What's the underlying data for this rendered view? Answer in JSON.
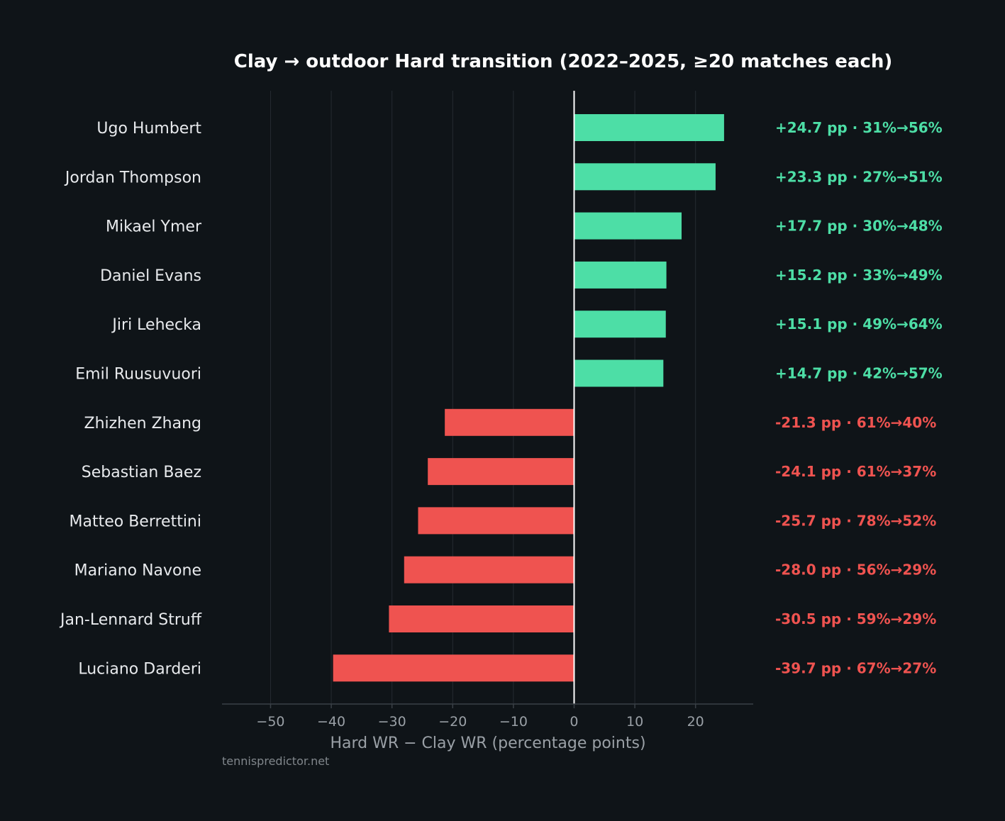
{
  "colors": {
    "background": "#0f1418",
    "positive": "#4ddea6",
    "negative": "#ef5350",
    "grid": "#252b31",
    "zero_line": "#ffffff",
    "axis_line": "#3a4047",
    "text_primary": "#e8eaed",
    "text_muted": "#9aa0a6",
    "text_faint": "#80868b",
    "title": "#ffffff"
  },
  "chart_data": {
    "type": "bar",
    "orientation": "horizontal",
    "title": "Clay → outdoor Hard transition (2022–2025, ≥20 matches each)",
    "xlabel": "Hard WR − Clay WR (percentage points)",
    "xlim": [
      -58,
      29.5
    ],
    "xticks": [
      -50,
      -40,
      -30,
      -20,
      -10,
      0,
      10,
      20
    ],
    "xtick_labels": [
      "−50",
      "−40",
      "−30",
      "−20",
      "−10",
      "0",
      "10",
      "20"
    ],
    "grid": "vertical",
    "categories": [
      "Ugo Humbert",
      "Jordan Thompson",
      "Mikael Ymer",
      "Daniel Evans",
      "Jiri Lehecka",
      "Emil Ruusuvuori",
      "Zhizhen Zhang",
      "Sebastian Baez",
      "Matteo Berrettini",
      "Mariano Navone",
      "Jan-Lennard Struff",
      "Luciano Darderi"
    ],
    "values": [
      24.7,
      23.3,
      17.7,
      15.2,
      15.1,
      14.7,
      -21.3,
      -24.1,
      -25.7,
      -28.0,
      -30.5,
      -39.7
    ],
    "annotations": [
      "+24.7 pp · 31%→56%",
      "+23.3 pp · 27%→51%",
      "+17.7 pp · 30%→48%",
      "+15.2 pp · 33%→49%",
      "+15.1 pp · 49%→64%",
      "+14.7 pp · 42%→57%",
      "-21.3 pp · 61%→40%",
      "-24.1 pp · 61%→37%",
      "-25.7 pp · 78%→52%",
      "-28.0 pp · 56%→29%",
      "-30.5 pp · 59%→29%",
      "-39.7 pp · 67%→27%"
    ]
  },
  "source": "tennispredictor.net"
}
